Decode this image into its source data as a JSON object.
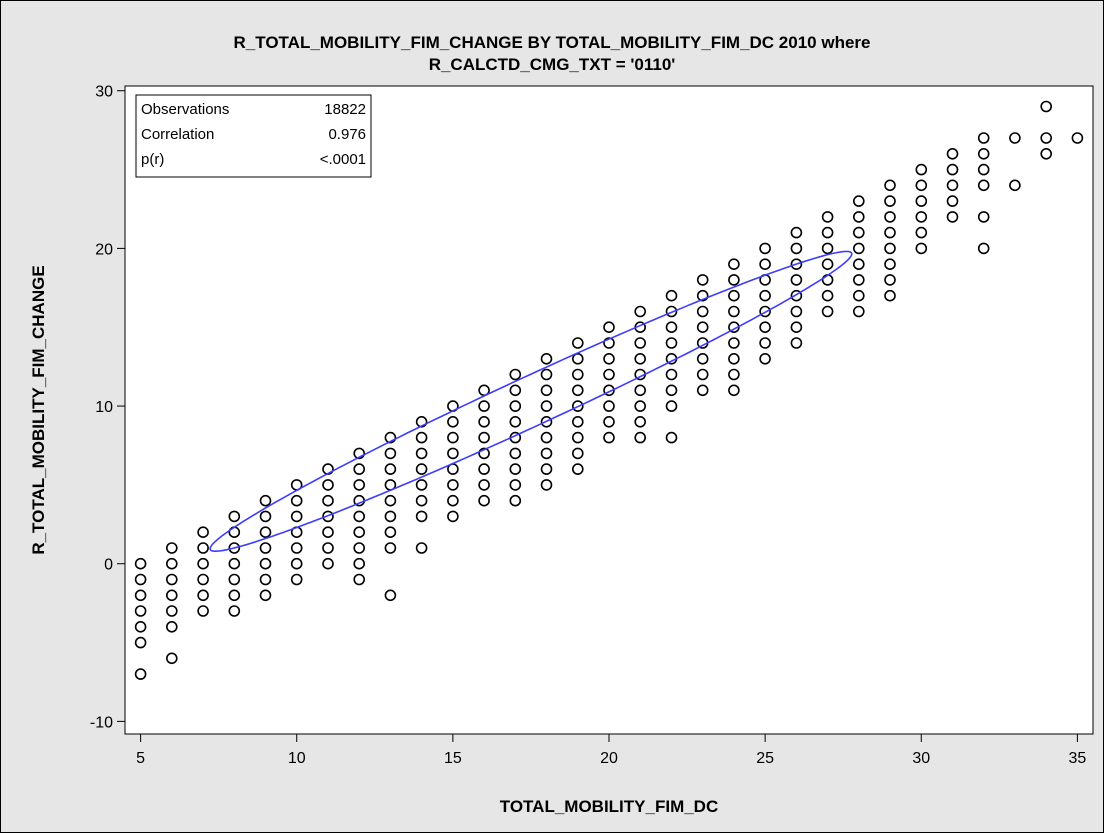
{
  "chart_data": {
    "type": "scatter",
    "title_line1": "R_TOTAL_MOBILITY_FIM_CHANGE BY TOTAL_MOBILITY_FIM_DC 2010 where",
    "title_line2": "R_CALCTD_CMG_TXT = '0110'",
    "xlabel": "TOTAL_MOBILITY_FIM_DC",
    "ylabel": "R_TOTAL_MOBILITY_FIM_CHANGE",
    "xlim": [
      4.5,
      35.5
    ],
    "ylim": [
      -10.8,
      30.3
    ],
    "x_ticks": [
      5,
      10,
      15,
      20,
      25,
      30,
      35
    ],
    "y_ticks": [
      -10,
      0,
      10,
      20,
      30
    ],
    "stats": [
      {
        "label": "Observations",
        "value": "18822"
      },
      {
        "label": "Correlation",
        "value": "0.976"
      },
      {
        "label": "p(r)",
        "value": "<.0001"
      }
    ],
    "point_columns": [
      {
        "x": 5,
        "ys": [
          0,
          -1,
          -2,
          -3,
          -4,
          -5,
          -7
        ]
      },
      {
        "x": 6,
        "ys": [
          1,
          0,
          -1,
          -2,
          -3,
          -4,
          -6
        ]
      },
      {
        "x": 7,
        "ys": [
          2,
          1,
          0,
          -1,
          -2,
          -3
        ]
      },
      {
        "x": 8,
        "ys": [
          3,
          2,
          1,
          0,
          -1,
          -2,
          -3
        ]
      },
      {
        "x": 9,
        "ys": [
          4,
          3,
          2,
          1,
          0,
          -1,
          -2
        ]
      },
      {
        "x": 10,
        "ys": [
          5,
          4,
          3,
          2,
          1,
          0,
          -1
        ]
      },
      {
        "x": 11,
        "ys": [
          6,
          5,
          4,
          3,
          2,
          1,
          0
        ]
      },
      {
        "x": 12,
        "ys": [
          7,
          6,
          5,
          4,
          3,
          2,
          1,
          0,
          -1
        ]
      },
      {
        "x": 13,
        "ys": [
          8,
          7,
          6,
          5,
          4,
          3,
          2,
          1,
          -2
        ]
      },
      {
        "x": 14,
        "ys": [
          9,
          8,
          7,
          6,
          5,
          4,
          3,
          1
        ]
      },
      {
        "x": 15,
        "ys": [
          10,
          9,
          8,
          7,
          6,
          5,
          4,
          3
        ]
      },
      {
        "x": 16,
        "ys": [
          11,
          10,
          9,
          8,
          7,
          6,
          5,
          4
        ]
      },
      {
        "x": 17,
        "ys": [
          12,
          11,
          10,
          9,
          8,
          7,
          6,
          5,
          4
        ]
      },
      {
        "x": 18,
        "ys": [
          13,
          12,
          11,
          10,
          9,
          8,
          7,
          6,
          5
        ]
      },
      {
        "x": 19,
        "ys": [
          14,
          13,
          12,
          11,
          10,
          9,
          8,
          7,
          6
        ]
      },
      {
        "x": 20,
        "ys": [
          15,
          14,
          13,
          12,
          11,
          10,
          9,
          8
        ]
      },
      {
        "x": 21,
        "ys": [
          16,
          15,
          14,
          13,
          12,
          11,
          10,
          9,
          8
        ]
      },
      {
        "x": 22,
        "ys": [
          17,
          16,
          15,
          14,
          13,
          12,
          11,
          10,
          8
        ]
      },
      {
        "x": 23,
        "ys": [
          18,
          17,
          16,
          15,
          14,
          13,
          12,
          11
        ]
      },
      {
        "x": 24,
        "ys": [
          19,
          18,
          17,
          16,
          15,
          14,
          13,
          12,
          11
        ]
      },
      {
        "x": 25,
        "ys": [
          20,
          19,
          18,
          17,
          16,
          15,
          14,
          13
        ]
      },
      {
        "x": 26,
        "ys": [
          21,
          20,
          19,
          18,
          17,
          16,
          15,
          14
        ]
      },
      {
        "x": 27,
        "ys": [
          22,
          21,
          20,
          19,
          18,
          17,
          16
        ]
      },
      {
        "x": 28,
        "ys": [
          23,
          22,
          21,
          20,
          19,
          18,
          17,
          16
        ]
      },
      {
        "x": 29,
        "ys": [
          24,
          23,
          22,
          21,
          20,
          19,
          18,
          17
        ]
      },
      {
        "x": 30,
        "ys": [
          25,
          24,
          23,
          22,
          21,
          20
        ]
      },
      {
        "x": 31,
        "ys": [
          26,
          25,
          24,
          23,
          22
        ]
      },
      {
        "x": 32,
        "ys": [
          27,
          26,
          25,
          24,
          22,
          20
        ]
      },
      {
        "x": 33,
        "ys": [
          27,
          24
        ]
      },
      {
        "x": 34,
        "ys": [
          29,
          27,
          26
        ]
      },
      {
        "x": 35,
        "ys": [
          27
        ]
      }
    ],
    "ellipse": {
      "center": [
        17.5,
        10.3
      ],
      "a": 13.94,
      "b": 1.27,
      "angle_deg": 42.74
    },
    "colors": {
      "frame_background": "#e6e6e6",
      "plot_background": "#ffffff",
      "marker": "#000000",
      "ellipse": "#3c3cff"
    }
  }
}
